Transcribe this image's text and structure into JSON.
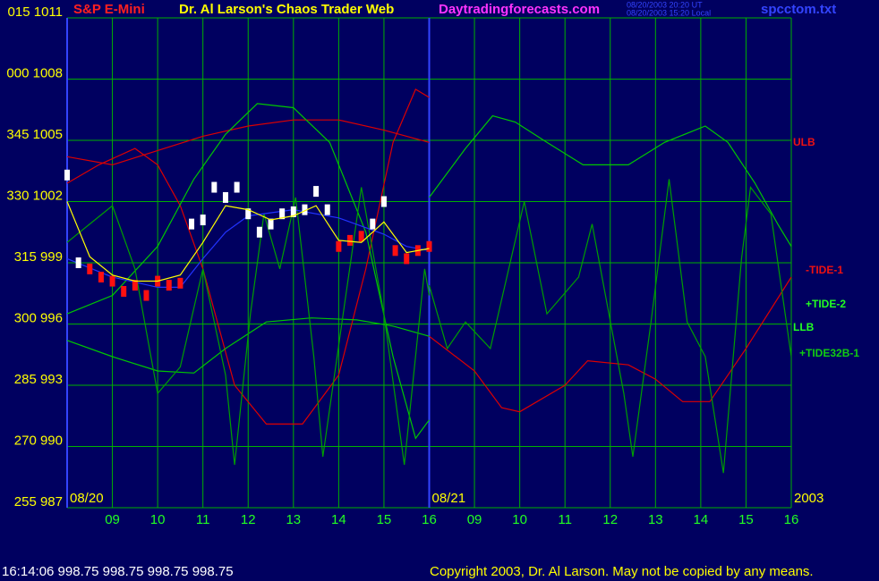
{
  "chart_data": {
    "type": "line",
    "header": {
      "symbol": "S&P E-Mini",
      "title": "Dr. Al Larson's Chaos Trader Web",
      "site": "Daytradingforecasts.com",
      "timestamp_ut": "08/20/2003 20:20 UT",
      "timestamp_local": "08/20/2003 15:20 Local",
      "file": "spcctom.txt"
    },
    "footer": {
      "status": "16:14:06  998.75 998.75 998.75 998.75",
      "copyright": "Copyright 2003, Dr. Al Larson. May not be copied by any means."
    },
    "date_labels": [
      {
        "text": "08/20",
        "x": 0
      },
      {
        "text": "08/21",
        "x": 8
      },
      {
        "text": "2003",
        "x": 16
      }
    ],
    "xlim": [
      0,
      16
    ],
    "ylim": [
      987,
      1011
    ],
    "divider": 8,
    "grid": true,
    "grid_color": "#00b000",
    "frame_color": "#3344ff",
    "xticks": [
      {
        "value": 1,
        "label": "09"
      },
      {
        "value": 2,
        "label": "10"
      },
      {
        "value": 3,
        "label": "11"
      },
      {
        "value": 4,
        "label": "12"
      },
      {
        "value": 5,
        "label": "13"
      },
      {
        "value": 6,
        "label": "14"
      },
      {
        "value": 7,
        "label": "15"
      },
      {
        "value": 8,
        "label": "16"
      },
      {
        "value": 9,
        "label": "09"
      },
      {
        "value": 10,
        "label": "10"
      },
      {
        "value": 11,
        "label": "11"
      },
      {
        "value": 12,
        "label": "12"
      },
      {
        "value": 13,
        "label": "13"
      },
      {
        "value": 14,
        "label": "14"
      },
      {
        "value": 15,
        "label": "15"
      },
      {
        "value": 16,
        "label": "16"
      }
    ],
    "yticks": [
      {
        "value": 1011,
        "label": "015 1011"
      },
      {
        "value": 1008,
        "label": "000 1008"
      },
      {
        "value": 1005,
        "label": "345 1005"
      },
      {
        "value": 1002,
        "label": "330 1002"
      },
      {
        "value": 999,
        "label": "315 999"
      },
      {
        "value": 996,
        "label": "300 996"
      },
      {
        "value": 993,
        "label": "285 993"
      },
      {
        "value": 990,
        "label": "270 990"
      },
      {
        "value": 987,
        "label": "255 987"
      }
    ],
    "series": [
      {
        "name": "ULB",
        "color": "#dd0000",
        "label_color": "#ee1111",
        "x": [
          0,
          1,
          2,
          3,
          4,
          5,
          6,
          7,
          8
        ],
        "values": [
          1004.2,
          1003.8,
          1004.5,
          1005.2,
          1005.7,
          1006.0,
          1006.0,
          1005.5,
          1004.9
        ]
      },
      {
        "name": "-TIDE-1",
        "color": "#dd0000",
        "label_color": "#ee1111",
        "x": [
          0,
          0.7,
          1.5,
          2.0,
          2.5,
          3.0,
          3.7,
          4.4,
          5.2,
          6.0,
          6.6,
          7.2,
          7.7,
          8,
          8,
          8,
          9,
          9.6,
          10,
          11,
          11.5,
          12.4,
          13,
          13.6,
          14.2,
          15,
          16
        ],
        "values": [
          1002.9,
          1003.8,
          1004.6,
          1003.8,
          1001.8,
          998.7,
          993.0,
          991.1,
          991.1,
          993.5,
          998.7,
          1004.9,
          1007.5,
          1007.1,
          null,
          995.4,
          993.7,
          991.9,
          991.7,
          993.0,
          994.2,
          994.0,
          993.3,
          992.2,
          992.2,
          994.8,
          998.3
        ]
      },
      {
        "name": "+TIDE-2",
        "color": "#00c800",
        "label_color": "#22ff22",
        "x": [
          0,
          1,
          2,
          2.8,
          3.5,
          4.2,
          5.0,
          5.8,
          6.6,
          7.2,
          7.7,
          8,
          8,
          8,
          8.8,
          9.4,
          9.9,
          10.6,
          11.4,
          12.4,
          13.2,
          14.1,
          14.6,
          15.2,
          15.7,
          16
        ],
        "values": [
          996.5,
          997.4,
          999.8,
          1003.1,
          1005.3,
          1006.8,
          1006.6,
          1004.9,
          1000.5,
          994.4,
          990.4,
          991.3,
          null,
          1002.2,
          1004.6,
          1006.2,
          1005.9,
          1004.9,
          1003.8,
          1003.8,
          1004.9,
          1005.7,
          1004.9,
          1002.9,
          1000.9,
          999.8
        ]
      },
      {
        "name": "LLB",
        "color": "#00c800",
        "label_color": "#22ff22",
        "x": [
          0,
          1,
          2,
          2.8,
          3.5,
          4.4,
          5.4,
          6.4,
          7.2,
          8
        ],
        "values": [
          995.2,
          994.4,
          993.7,
          993.6,
          994.8,
          996.1,
          996.3,
          996.2,
          995.9,
          995.4
        ]
      },
      {
        "name": "+TIDE32B-1",
        "color": "#009f00",
        "label_color": "#11cc11",
        "x": [
          0,
          0.5,
          1.0,
          1.5,
          2.0,
          2.5,
          3.0,
          3.5,
          3.7,
          4.05,
          4.35,
          4.7,
          5.05,
          5.45,
          5.65,
          6.1,
          6.5,
          7.0,
          7.45,
          7.9,
          8,
          8,
          8,
          8.4,
          8.8,
          9.35,
          10.1,
          10.6,
          11.3,
          11.6,
          12.3,
          12.5,
          12.9,
          13.3,
          13.7,
          14.1,
          14.5,
          14.9,
          15.1,
          15.55,
          16
        ],
        "values": [
          1000.0,
          1000.9,
          1001.8,
          998.7,
          992.6,
          993.9,
          998.7,
          993.5,
          989.1,
          996.5,
          1001.4,
          998.7,
          1002.2,
          994.4,
          989.5,
          996.5,
          1002.7,
          996.5,
          989.1,
          998.7,
          997.4,
          null,
          997.9,
          994.8,
          996.1,
          994.8,
          1002.0,
          996.5,
          998.3,
          1000.9,
          992.6,
          989.5,
          996.1,
          1003.1,
          996.1,
          994.4,
          988.7,
          999.2,
          1002.7,
          1001.4,
          994.4
        ]
      },
      {
        "color": "#2233ff",
        "x": [
          0,
          1,
          2,
          2.5,
          3,
          3.5,
          4,
          5,
          6,
          7,
          7.5,
          8
        ],
        "values": [
          999.2,
          998.3,
          997.8,
          997.8,
          999.2,
          1000.5,
          1001.3,
          1001.6,
          1001.2,
          1000.4,
          999.8,
          999.6
        ]
      },
      {
        "color": "#ffff00",
        "x": [
          0,
          0.5,
          1,
          1.5,
          2,
          2.5,
          3,
          3.5,
          4,
          4.5,
          5,
          5.5,
          6,
          6.5,
          7,
          7.5,
          8
        ],
        "values": [
          1002.0,
          999.3,
          998.4,
          998.1,
          998.1,
          998.4,
          1000.0,
          1001.8,
          1001.6,
          1001.1,
          1001.3,
          1001.8,
          1000.1,
          1000.0,
          1001.0,
          999.5,
          999.7
        ]
      }
    ],
    "price": {
      "x": [
        0,
        0.25,
        0.5,
        0.75,
        1,
        1.25,
        1.5,
        1.75,
        2,
        2.25,
        2.5,
        2.75,
        3,
        3.25,
        3.5,
        3.75,
        4,
        4.25,
        4.5,
        4.75,
        5,
        5.25,
        5.5,
        5.75,
        6,
        6.25,
        6.5,
        6.75,
        7,
        7.25,
        7.5,
        7.75,
        8
      ],
      "values": [
        1003.3,
        999.0,
        998.7,
        998.3,
        998.1,
        997.6,
        997.9,
        997.4,
        998.1,
        997.9,
        998.0,
        1000.9,
        1001.1,
        1002.7,
        1002.2,
        1002.7,
        1001.4,
        1000.5,
        1000.9,
        1001.4,
        1001.5,
        1001.6,
        1002.5,
        1001.6,
        999.8,
        1000.1,
        1000.3,
        1000.9,
        1002.0,
        999.6,
        999.2,
        999.6,
        999.8
      ],
      "colors": [
        "#ffffff",
        "#ffffff",
        "#ff1010",
        "#ff1010",
        "#ff1010",
        "#ff1010",
        "#ff1010",
        "#ff1010",
        "#ff1010",
        "#ff1010",
        "#ff1010",
        "#ffffff",
        "#ffffff",
        "#ffffff",
        "#ffffff",
        "#ffffff",
        "#ffffff",
        "#ffffff",
        "#ffffff",
        "#ffffff",
        "#ffffff",
        "#ffffff",
        "#ffffff",
        "#ffffff",
        "#ff1010",
        "#ff1010",
        "#ff1010",
        "#ffffff",
        "#ffffff",
        "#ff1010",
        "#ff1010",
        "#ff1010",
        "#ff1010"
      ]
    }
  }
}
